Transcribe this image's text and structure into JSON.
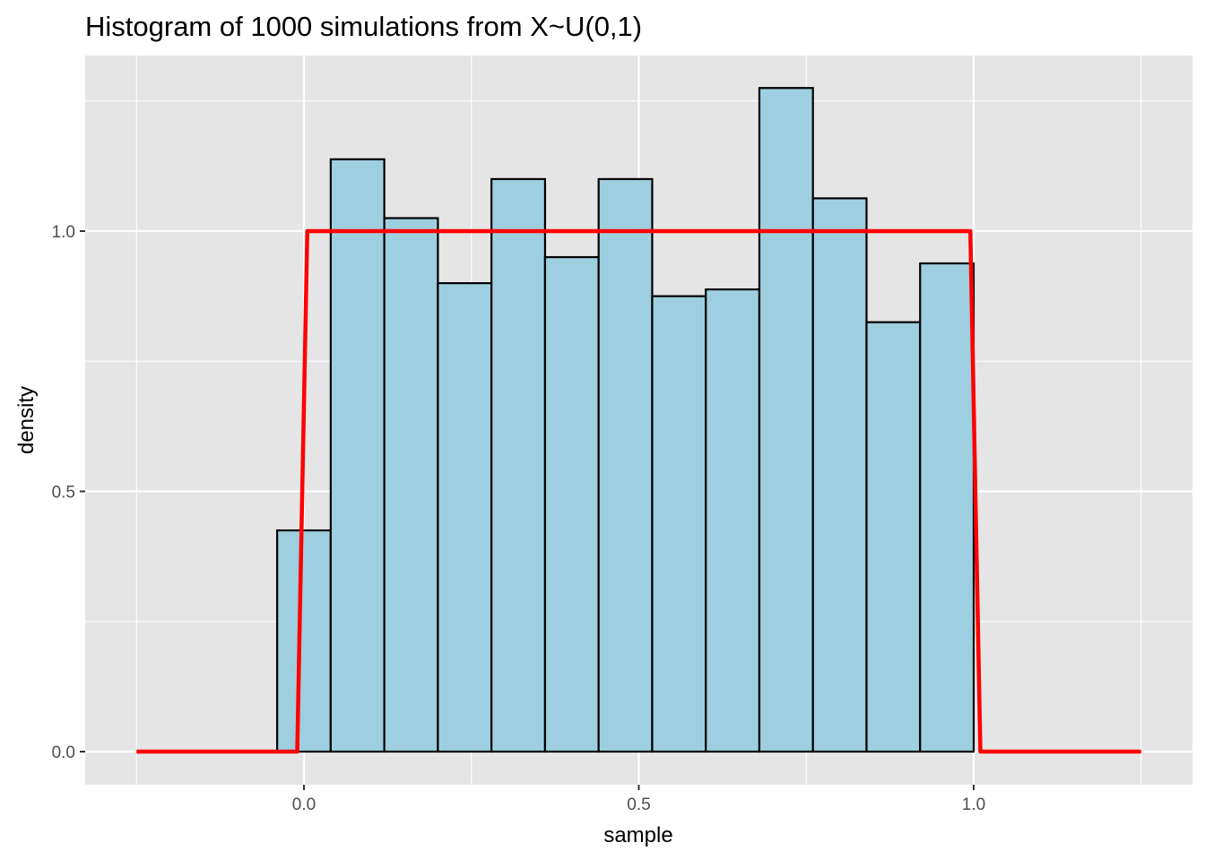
{
  "chart_data": {
    "type": "bar",
    "title": "Histogram of 1000 simulations from X~U(0,1)",
    "xlabel": "sample",
    "ylabel": "density",
    "xlim": [
      -0.25,
      1.25
    ],
    "ylim": [
      -0.05,
      1.28
    ],
    "x_ticks": [
      0.0,
      0.5,
      1.0
    ],
    "x_tick_labels": [
      "0.0",
      "0.5",
      "1.0"
    ],
    "y_ticks": [
      0.0,
      0.5,
      1.0
    ],
    "y_tick_labels": [
      "0.0",
      "0.5",
      "1.0"
    ],
    "x_minor_ticks": [
      -0.25,
      0.25,
      0.75,
      1.25
    ],
    "y_minor_ticks": [
      0.25,
      0.75,
      1.25
    ],
    "grid": true,
    "bins": [
      {
        "x0": -0.04,
        "x1": 0.04,
        "density": 0.425
      },
      {
        "x0": 0.04,
        "x1": 0.12,
        "density": 1.138
      },
      {
        "x0": 0.12,
        "x1": 0.2,
        "density": 1.025
      },
      {
        "x0": 0.2,
        "x1": 0.28,
        "density": 0.9
      },
      {
        "x0": 0.28,
        "x1": 0.36,
        "density": 1.1
      },
      {
        "x0": 0.36,
        "x1": 0.44,
        "density": 0.95
      },
      {
        "x0": 0.44,
        "x1": 0.52,
        "density": 1.1
      },
      {
        "x0": 0.52,
        "x1": 0.6,
        "density": 0.875
      },
      {
        "x0": 0.6,
        "x1": 0.68,
        "density": 0.888
      },
      {
        "x0": 0.68,
        "x1": 0.76,
        "density": 1.275
      },
      {
        "x0": 0.76,
        "x1": 0.84,
        "density": 1.063
      },
      {
        "x0": 0.84,
        "x1": 0.92,
        "density": 0.825
      },
      {
        "x0": 0.92,
        "x1": 1.0,
        "density": 0.938
      }
    ],
    "density_curve": {
      "color": "#ff0000",
      "points": [
        [
          -0.25,
          0
        ],
        [
          -0.01,
          0
        ],
        [
          0.005,
          1
        ],
        [
          0.995,
          1
        ],
        [
          1.01,
          0
        ],
        [
          1.25,
          0
        ]
      ]
    },
    "colors": {
      "bar_fill": "#9ecfe0",
      "bar_outline": "#000000",
      "panel_background": "#e5e5e5",
      "grid": "#ffffff"
    }
  }
}
